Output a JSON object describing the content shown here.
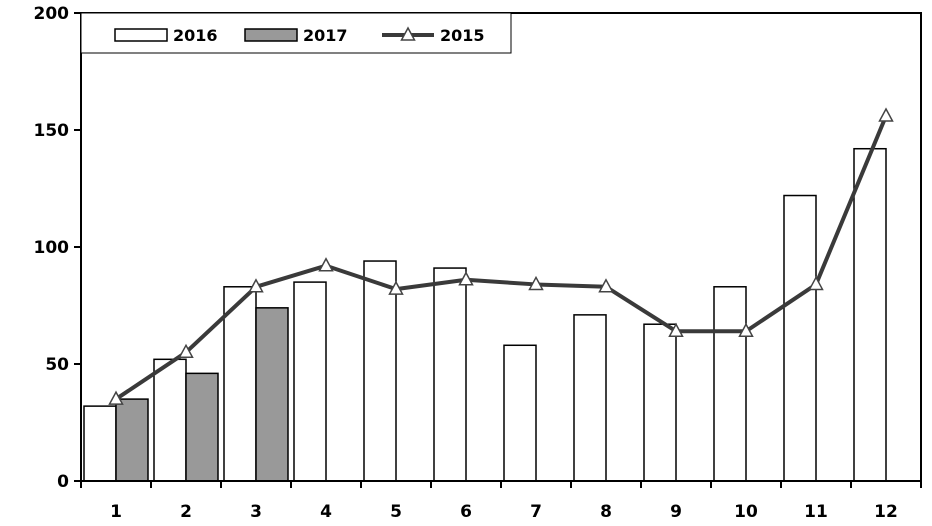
{
  "chart_data": {
    "type": "bar",
    "categories": [
      "1",
      "2",
      "3",
      "4",
      "5",
      "6",
      "7",
      "8",
      "9",
      "10",
      "11",
      "12"
    ],
    "series": [
      {
        "name": "2016",
        "type": "bar",
        "color": "#ffffff",
        "values": [
          32,
          52,
          83,
          85,
          94,
          91,
          58,
          71,
          67,
          83,
          122,
          142
        ]
      },
      {
        "name": "2017",
        "type": "bar",
        "color": "#999999",
        "values": [
          35,
          46,
          74,
          null,
          null,
          null,
          null,
          null,
          null,
          null,
          null,
          null
        ]
      },
      {
        "name": "2015",
        "type": "line",
        "color": "#3a3a3a",
        "marker": "triangle",
        "values": [
          35,
          55,
          83,
          92,
          82,
          86,
          84,
          83,
          64,
          64,
          84,
          156
        ]
      }
    ],
    "ylim": [
      0,
      200
    ],
    "yticks": [
      0,
      50,
      100,
      150,
      200
    ],
    "legend": {
      "position": "top-left",
      "order": [
        "2016",
        "2017",
        "2015"
      ]
    },
    "grid": false
  }
}
